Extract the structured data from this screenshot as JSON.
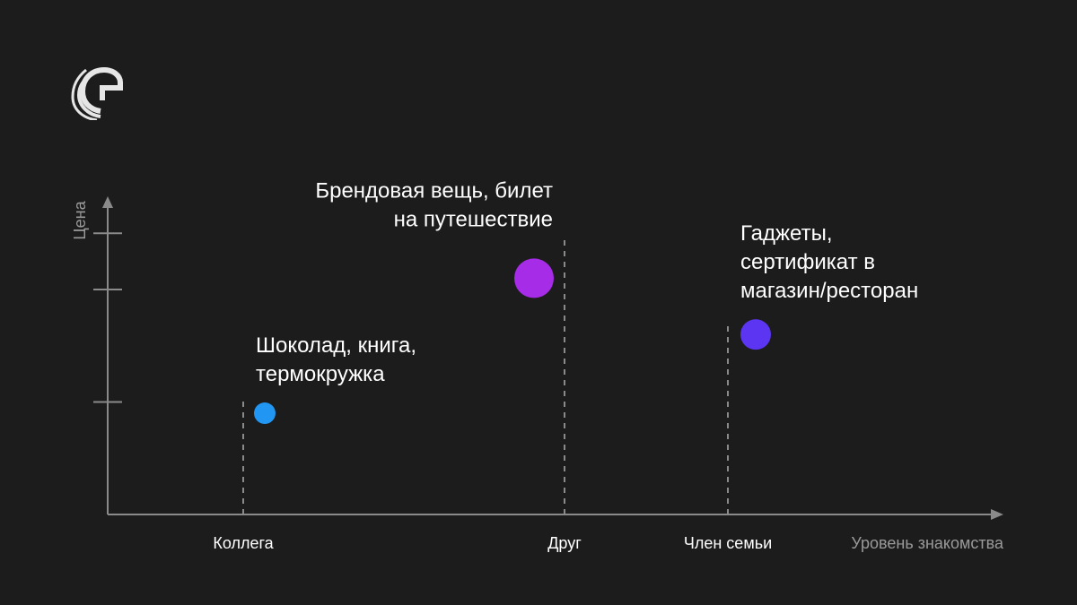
{
  "brand": {
    "logo_icon": "brand-logo-icon"
  },
  "chart_data": {
    "type": "scatter",
    "xlabel": "Уровень знакомства",
    "ylabel": "Цена",
    "categories": [
      "Коллега",
      "Друг",
      "Член семьи"
    ],
    "y_ticks": [
      1,
      2,
      2.5
    ],
    "ylim": [
      0,
      2.9
    ],
    "grid": false,
    "points": [
      {
        "category": "Коллега",
        "value": 0.9,
        "size": "small",
        "color": "#2196f3",
        "label": [
          "Шоколад, книга,",
          "термокружка"
        ]
      },
      {
        "category": "Друг",
        "value": 2.1,
        "size": "large",
        "color": "#a72ce8",
        "label": [
          "Брендовая вещь, билет",
          "на путешествие"
        ]
      },
      {
        "category": "Член семьи",
        "value": 1.6,
        "size": "medium",
        "color": "#5b35f2",
        "label": [
          "Гаджеты,",
          "сертификат в",
          "магазин/ресторан"
        ]
      }
    ],
    "colors": {
      "background": "#1c1c1c",
      "axis": "#8a8a8a",
      "text": "#ffffff"
    }
  }
}
